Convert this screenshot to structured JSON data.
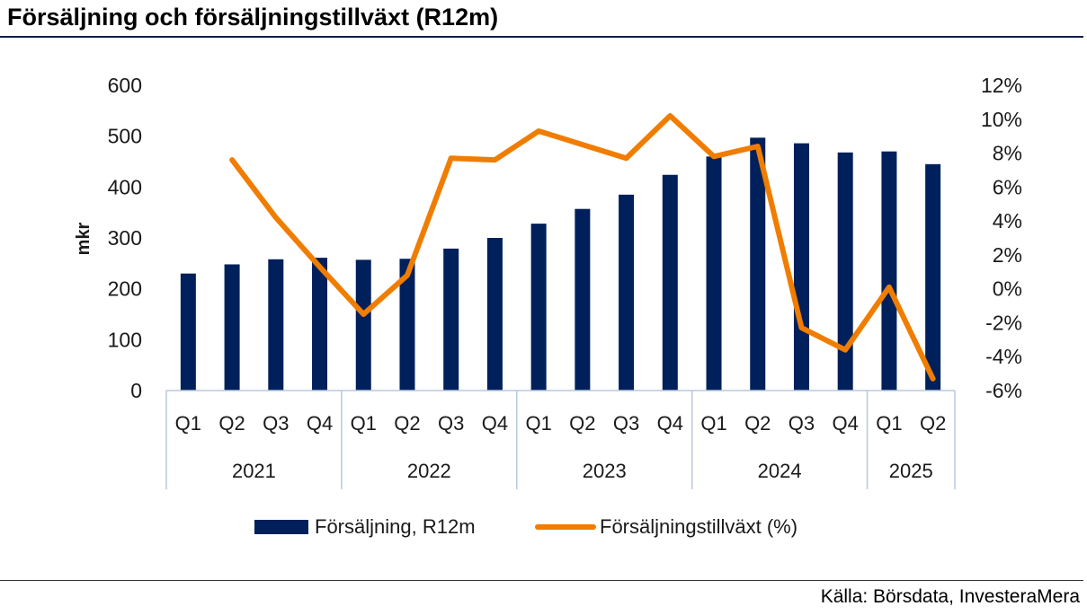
{
  "title": "Försäljning och försäljningstillväxt (R12m)",
  "source": "Källa: Börsdata, InvesteraMera",
  "colors": {
    "bar": "#00205b",
    "line": "#f07d00",
    "axis": "#b8c9e0"
  },
  "chart_data": {
    "type": "bar+line",
    "y_label": "mkr",
    "y_left_range": [
      0,
      600
    ],
    "y_left_ticks": [
      "0",
      "100",
      "200",
      "300",
      "400",
      "500",
      "600"
    ],
    "y_right_range": [
      -6,
      12
    ],
    "y_right_ticks": [
      "-6%",
      "-4%",
      "-2%",
      "0%",
      "2%",
      "4%",
      "6%",
      "8%",
      "10%",
      "12%"
    ],
    "quarters": [
      "Q1",
      "Q2",
      "Q3",
      "Q4",
      "Q1",
      "Q2",
      "Q3",
      "Q4",
      "Q1",
      "Q2",
      "Q3",
      "Q4",
      "Q1",
      "Q2",
      "Q3",
      "Q4",
      "Q1",
      "Q2"
    ],
    "years": [
      {
        "label": "2021",
        "count": 4
      },
      {
        "label": "2022",
        "count": 4
      },
      {
        "label": "2023",
        "count": 4
      },
      {
        "label": "2024",
        "count": 4
      },
      {
        "label": "2025",
        "count": 2
      }
    ],
    "series": [
      {
        "name": "Försäljning, R12m",
        "type": "bar",
        "axis": "left",
        "values": [
          230,
          248,
          258,
          261,
          257,
          259,
          279,
          300,
          328,
          357,
          385,
          424,
          460,
          497,
          486,
          468,
          470,
          445
        ]
      },
      {
        "name": "Försäljningstillväxt (%)",
        "type": "line",
        "axis": "right",
        "values": [
          null,
          7.6,
          4.2,
          1.3,
          -1.5,
          0.8,
          7.7,
          7.6,
          9.3,
          8.5,
          7.7,
          10.2,
          7.8,
          8.4,
          -2.3,
          -3.6,
          0.1,
          -5.3
        ]
      }
    ],
    "legend": [
      "Försäljning, R12m",
      "Försäljningstillväxt (%)"
    ]
  }
}
